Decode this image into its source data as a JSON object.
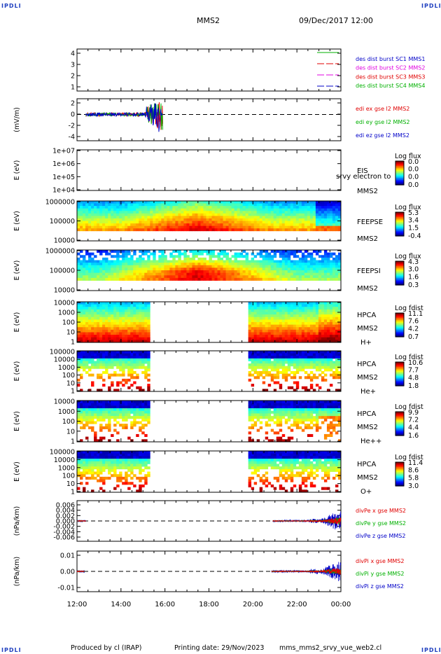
{
  "header": {
    "corner_label": "IPDLI",
    "spacecraft": "MMS2",
    "datetime": "09/Dec/2017 12:00"
  },
  "footer": {
    "produced_by": "Produced by cl (IRAP)",
    "printing_date": "Printing date: 29/Nov/2023",
    "filename": "mms_mms2_srvy_vue_web2.cl"
  },
  "colors": {
    "red": "#e00000",
    "green": "#00b000",
    "blue": "#0000c8",
    "magenta": "#e000e0"
  },
  "chart_data": {
    "type": "multi-panel time series / spectrogram stack",
    "x_tick_labels": [
      "12:00",
      "14:00",
      "16:00",
      "18:00",
      "20:00",
      "22:00",
      "00:00"
    ],
    "x_range_hours": [
      12,
      24
    ],
    "panels": [
      {
        "id": "burst",
        "type": "line",
        "ylabel": "",
        "yticks": [
          "4",
          "3",
          "2",
          "1"
        ],
        "ylim": [
          0.5,
          4.5
        ],
        "legend": [
          {
            "label": "des dist burst SC1 MMS1",
            "color": "#0000c8",
            "line": "#00b000"
          },
          {
            "label": "des dist burst SC2 MMS2",
            "color": "#e000e0",
            "line": "#e00000"
          },
          {
            "label": "des dist burst SC3 MMS3",
            "color": "#e00000",
            "line": "#e000e0"
          },
          {
            "label": "des dist burst SC4 MMS4",
            "color": "#00b000",
            "line": "#0000c8"
          }
        ]
      },
      {
        "id": "edi",
        "type": "line",
        "ylabel": "(mV/m)",
        "yticks": [
          "2",
          "0",
          "-2",
          "-4"
        ],
        "ylim": [
          -5,
          3
        ],
        "data_extent_hours": [
          12.4,
          15.9
        ],
        "legend": [
          {
            "label": "edi ex gse l2 MMS2",
            "color": "#e00000"
          },
          {
            "label": "edi ey gse l2 MMS2",
            "color": "#00b000"
          },
          {
            "label": "edi ez gse l2 MMS2",
            "color": "#0000c8"
          }
        ]
      },
      {
        "id": "eis",
        "type": "heatmap",
        "ylabel": "E (eV)",
        "yticks": [
          "1e+07",
          "1e+06",
          "1e+05",
          "1e+04"
        ],
        "instrument": [
          "EIS",
          "srvy electron to",
          "MMS2"
        ],
        "colorbar_title": "Log flux",
        "colorbar_ticks": [
          "0.0",
          "0.0",
          "0.0",
          "0.0"
        ],
        "empty": true
      },
      {
        "id": "feepse",
        "type": "heatmap",
        "ylabel": "E (eV)",
        "yticks": [
          "1000000",
          "100000",
          "10000"
        ],
        "instrument": [
          "FEEPSE",
          "MMS2"
        ],
        "colorbar_title": "Log flux",
        "colorbar_ticks": [
          "5.3",
          "3.4",
          "1.5",
          "-0.4"
        ],
        "coverage_hours": [
          [
            12,
            24
          ]
        ]
      },
      {
        "id": "feepsi",
        "type": "heatmap",
        "ylabel": "E (eV)",
        "yticks": [
          "1000000",
          "100000",
          "10000"
        ],
        "instrument": [
          "FEEPSI",
          "MMS2"
        ],
        "colorbar_title": "Log flux",
        "colorbar_ticks": [
          "4.3",
          "3.0",
          "1.6",
          "0.3"
        ],
        "coverage_hours": [
          [
            12,
            24
          ]
        ]
      },
      {
        "id": "hpca_h",
        "type": "heatmap",
        "ylabel": "E (eV)",
        "yticks": [
          "10000",
          "1000",
          "100",
          "10",
          "1"
        ],
        "instrument": [
          "HPCA",
          "MMS2",
          "H+"
        ],
        "colorbar_title": "Log fdist",
        "colorbar_ticks": [
          "11.1",
          "7.6",
          "4.2",
          "0.7"
        ],
        "coverage_hours": [
          [
            12,
            15.35
          ],
          [
            19.8,
            24
          ]
        ]
      },
      {
        "id": "hpca_he",
        "type": "heatmap",
        "ylabel": "E (eV)",
        "yticks": [
          "100000",
          "10000",
          "1000",
          "100",
          "10",
          "1"
        ],
        "instrument": [
          "HPCA",
          "MMS2",
          "He+"
        ],
        "colorbar_title": "Log fdist",
        "colorbar_ticks": [
          "10.6",
          "7.7",
          "4.8",
          "1.8"
        ],
        "coverage_hours": [
          [
            12,
            15.35
          ],
          [
            19.8,
            24
          ]
        ]
      },
      {
        "id": "hpca_he2",
        "type": "heatmap",
        "ylabel": "E (eV)",
        "yticks": [
          "10000",
          "1000",
          "100",
          "10",
          "1"
        ],
        "instrument": [
          "HPCA",
          "MMS2",
          "He++"
        ],
        "colorbar_title": "Log fdist",
        "colorbar_ticks": [
          "9.9",
          "7.2",
          "4.4",
          "1.6"
        ],
        "coverage_hours": [
          [
            12,
            15.35
          ],
          [
            19.8,
            24
          ]
        ]
      },
      {
        "id": "hpca_o",
        "type": "heatmap",
        "ylabel": "E (eV)",
        "yticks": [
          "100000",
          "10000",
          "1000",
          "100",
          "10",
          "1"
        ],
        "instrument": [
          "HPCA",
          "MMS2",
          "O+"
        ],
        "colorbar_title": "Log fdist",
        "colorbar_ticks": [
          "11.4",
          "8.6",
          "5.8",
          "3.0"
        ],
        "coverage_hours": [
          [
            12,
            15.35
          ],
          [
            19.8,
            24
          ]
        ]
      },
      {
        "id": "divpe",
        "type": "line",
        "ylabel": "(nPa/km)",
        "yticks": [
          "0.006",
          "0.004",
          "0.002",
          "0.000",
          "-0.002",
          "-0.004",
          "-0.006"
        ],
        "ylim": [
          -0.007,
          0.007
        ],
        "legend": [
          {
            "label": "divPe x gse MMS2",
            "color": "#e00000"
          },
          {
            "label": "divPe y gse MMS2",
            "color": "#00b000"
          },
          {
            "label": "divPe z gse MMS2",
            "color": "#0000c8"
          }
        ]
      },
      {
        "id": "divpi",
        "type": "line",
        "ylabel": "(nPa/km)",
        "yticks": [
          "0.01",
          "0.00",
          "-0.01"
        ],
        "ylim": [
          -0.017,
          0.017
        ],
        "legend": [
          {
            "label": "divPi x gse MMS2",
            "color": "#e00000"
          },
          {
            "label": "divPi y gse MMS2",
            "color": "#00b000"
          },
          {
            "label": "divPi z gse MMS2",
            "color": "#0000c8"
          }
        ]
      }
    ]
  }
}
